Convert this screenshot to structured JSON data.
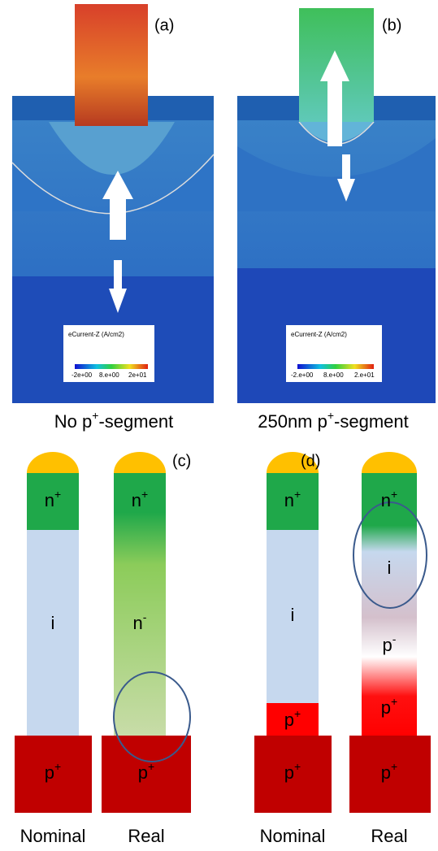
{
  "panels": {
    "a": {
      "label": "(a)",
      "colorbar_title": "eCurrent-Z (A/cm2)",
      "colorbar_ticks": [
        "-2e+00",
        "8.e+00",
        "2e+01"
      ],
      "caption": {
        "base": "No p",
        "sup": "+",
        "rest": "-segment"
      }
    },
    "b": {
      "label": "(b)",
      "colorbar_title": "eCurrent-Z (A/cm2)",
      "colorbar_ticks": [
        "-2.e+00",
        "8.e+00",
        "2.e+01"
      ],
      "caption": {
        "base": "250nm p",
        "sup": "+",
        "rest": "-segment"
      }
    },
    "c": {
      "label": "(c)",
      "nominal": {
        "title": "Nominal",
        "segments": [
          {
            "base": "n",
            "sup": "+"
          },
          {
            "base": "i"
          },
          {
            "base": "p",
            "sup": "+"
          }
        ]
      },
      "real": {
        "title": "Real",
        "segments": [
          {
            "base": "n",
            "sup": "+"
          },
          {
            "base": "n",
            "sup": "-"
          },
          {
            "base": "p",
            "sup": "+"
          }
        ]
      }
    },
    "d": {
      "label": "(d)",
      "nominal": {
        "title": "Nominal",
        "segments": [
          {
            "base": "n",
            "sup": "+"
          },
          {
            "base": "i"
          },
          {
            "base": "p",
            "sup": "+"
          },
          {
            "base": "p",
            "sup": "+"
          }
        ]
      },
      "real": {
        "title": "Real",
        "segments": [
          {
            "base": "n",
            "sup": "+"
          },
          {
            "base": "i"
          },
          {
            "base": "p",
            "sup": "-"
          },
          {
            "base": "p",
            "sup": "+"
          },
          {
            "base": "p",
            "sup": "+"
          }
        ]
      }
    }
  }
}
